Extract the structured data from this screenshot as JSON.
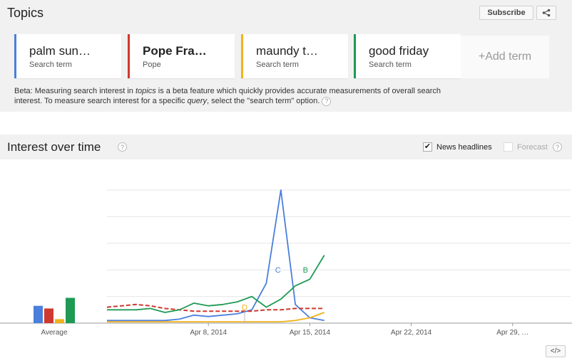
{
  "topics": {
    "title": "Topics",
    "subscribe_label": "Subscribe",
    "share_icon": "share-icon",
    "terms": [
      {
        "name": "palm sun…",
        "sub": "Search term",
        "color": "#4a7fdc",
        "bold": false
      },
      {
        "name": "Pope Fra…",
        "sub": "Pope",
        "color": "#d0392f",
        "bold": true
      },
      {
        "name": "maundy t…",
        "sub": "Search term",
        "color": "#f2b21b",
        "bold": false
      },
      {
        "name": "good friday",
        "sub": "Search term",
        "color": "#1f9a55",
        "bold": false
      }
    ],
    "add_term_label": "+Add term",
    "beta_note": {
      "part1": "Beta: Measuring search interest in ",
      "italic1": "topics",
      "part2": " is a beta feature which quickly provides accurate measurements of overall search interest. To measure search interest for a specific ",
      "italic2": "query",
      "part3": ", select the \"search term\" option."
    },
    "help_glyph": "?"
  },
  "interest": {
    "title": "Interest over time",
    "news_label": "News headlines",
    "news_checked": true,
    "check_glyph": "✔",
    "forecast_label": "Forecast",
    "forecast_checked": false,
    "embed_label": "</>"
  },
  "chart_data": {
    "type": "line",
    "average_label": "Average",
    "averages": [
      {
        "series": "palm sunday",
        "value": 13,
        "color": "#4a7fdc"
      },
      {
        "series": "Pope Francis",
        "value": 11,
        "color": "#d0392f"
      },
      {
        "series": "maundy thursday",
        "value": 3,
        "color": "#f2b21b"
      },
      {
        "series": "good friday",
        "value": 19,
        "color": "#1f9a55"
      }
    ],
    "x_ticks": [
      "Apr 8, 2014",
      "Apr 15, 2014",
      "Apr 22, 2014",
      "Apr 29, …"
    ],
    "x_range": [
      0,
      32
    ],
    "tick_positions": [
      7,
      14,
      21,
      28
    ],
    "ylim": [
      0,
      100
    ],
    "gridlines": [
      20,
      40,
      60,
      80,
      100
    ],
    "series": [
      {
        "name": "palm sunday",
        "color": "#4a7fdc",
        "dashed": false,
        "x": [
          0,
          1,
          2,
          3,
          4,
          5,
          6,
          7,
          8,
          9,
          10,
          11,
          12,
          13,
          14,
          15
        ],
        "y": [
          2,
          2,
          2,
          2,
          2,
          3,
          6,
          5,
          6,
          7,
          10,
          30,
          100,
          14,
          4,
          2
        ]
      },
      {
        "name": "Pope Francis",
        "color": "#d0392f",
        "dashed": true,
        "x": [
          0,
          1,
          2,
          3,
          4,
          5,
          6,
          7,
          8,
          9,
          10,
          11,
          12,
          13,
          14,
          15
        ],
        "y": [
          12,
          13,
          14,
          13,
          11,
          10,
          9,
          9,
          9,
          9,
          9,
          10,
          10,
          11,
          11,
          11
        ]
      },
      {
        "name": "maundy thursday",
        "color": "#f2b21b",
        "dashed": false,
        "x": [
          0,
          1,
          2,
          3,
          4,
          5,
          6,
          7,
          8,
          9,
          10,
          11,
          12,
          13,
          14,
          15
        ],
        "y": [
          1,
          1,
          1,
          1,
          1,
          1,
          1,
          1,
          1,
          1,
          1,
          1,
          1,
          2,
          4,
          8
        ]
      },
      {
        "name": "good friday",
        "color": "#1f9a55",
        "dashed": false,
        "x": [
          0,
          1,
          2,
          3,
          4,
          5,
          6,
          7,
          8,
          9,
          10,
          11,
          12,
          13,
          14,
          15
        ],
        "y": [
          10,
          10,
          10,
          11,
          8,
          10,
          15,
          13,
          14,
          16,
          20,
          12,
          18,
          28,
          33,
          51
        ]
      }
    ],
    "annotations": [
      {
        "letter": "C",
        "x": 11.8,
        "y": 38,
        "color": "#4a7fdc"
      },
      {
        "letter": "B",
        "x": 13.7,
        "y": 38,
        "color": "#1f9a55"
      },
      {
        "letter": "D",
        "x": 9.5,
        "y": 10,
        "color": "#f2b21b"
      }
    ]
  }
}
